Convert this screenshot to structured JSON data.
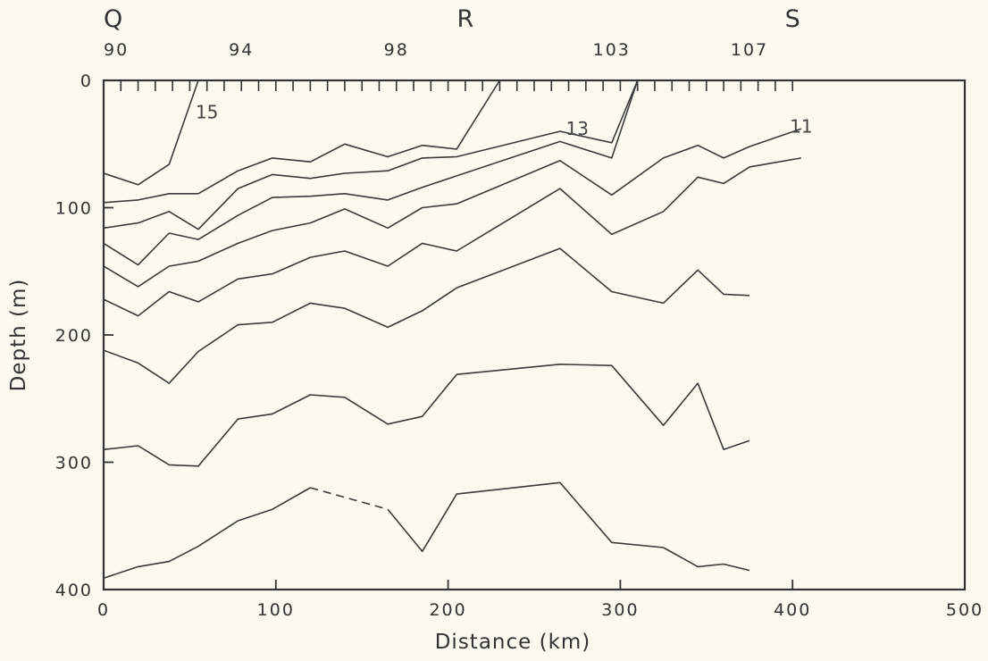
{
  "chart_data": {
    "type": "line",
    "xlabel": "Distance (km)",
    "ylabel": "Depth (m)",
    "xlim": [
      0,
      500
    ],
    "ylim": [
      0,
      400
    ],
    "y_inverted": true,
    "x_ticks": [
      0,
      100,
      200,
      300,
      400,
      500
    ],
    "y_ticks": [
      0,
      100,
      200,
      300,
      400
    ],
    "section_labels": [
      {
        "label": "Q",
        "x": 0
      },
      {
        "label": "R",
        "x": 210
      },
      {
        "label": "S",
        "x": 400
      }
    ],
    "station_labels": [
      {
        "label": "90",
        "x": 0
      },
      {
        "label": "94",
        "x": 80
      },
      {
        "label": "98",
        "x": 170
      },
      {
        "label": "103",
        "x": 295
      },
      {
        "label": "107",
        "x": 375
      }
    ],
    "contour_labels": [
      {
        "label": "15",
        "x": 60,
        "y": 25
      },
      {
        "label": "13",
        "x": 275,
        "y": 38
      },
      {
        "label": "11",
        "x": 405,
        "y": 36
      }
    ],
    "series": [
      {
        "points": [
          [
            0,
            73
          ],
          [
            20,
            82
          ],
          [
            38,
            66
          ],
          [
            55,
            0
          ]
        ]
      },
      {
        "points": [
          [
            0,
            96
          ],
          [
            20,
            94
          ],
          [
            38,
            89
          ],
          [
            55,
            89
          ],
          [
            78,
            71
          ],
          [
            98,
            61
          ],
          [
            120,
            64
          ],
          [
            140,
            50
          ],
          [
            165,
            60
          ],
          [
            185,
            51
          ],
          [
            205,
            54
          ],
          [
            230,
            0
          ]
        ]
      },
      {
        "points": [
          [
            0,
            116
          ],
          [
            20,
            112
          ],
          [
            38,
            103
          ],
          [
            55,
            117
          ],
          [
            78,
            85
          ],
          [
            98,
            74
          ],
          [
            120,
            77
          ],
          [
            140,
            73
          ],
          [
            165,
            71
          ],
          [
            185,
            61
          ],
          [
            205,
            60
          ],
          [
            265,
            40
          ],
          [
            295,
            49
          ],
          [
            310,
            0
          ]
        ]
      },
      {
        "points": [
          [
            0,
            128
          ],
          [
            20,
            145
          ],
          [
            38,
            120
          ],
          [
            55,
            125
          ],
          [
            78,
            106
          ],
          [
            98,
            92
          ],
          [
            120,
            91
          ],
          [
            140,
            89
          ],
          [
            165,
            94
          ],
          [
            185,
            84
          ],
          [
            265,
            48
          ],
          [
            295,
            61
          ],
          [
            310,
            0
          ]
        ]
      },
      {
        "points": [
          [
            0,
            146
          ],
          [
            20,
            162
          ],
          [
            38,
            146
          ],
          [
            55,
            142
          ],
          [
            78,
            128
          ],
          [
            98,
            118
          ],
          [
            120,
            112
          ],
          [
            140,
            101
          ],
          [
            165,
            116
          ],
          [
            185,
            100
          ],
          [
            205,
            97
          ],
          [
            265,
            63
          ],
          [
            295,
            90
          ],
          [
            325,
            61
          ],
          [
            345,
            51
          ],
          [
            360,
            61
          ],
          [
            375,
            52
          ],
          [
            405,
            38
          ]
        ]
      },
      {
        "points": [
          [
            0,
            172
          ],
          [
            20,
            185
          ],
          [
            38,
            166
          ],
          [
            55,
            174
          ],
          [
            78,
            156
          ],
          [
            98,
            152
          ],
          [
            120,
            139
          ],
          [
            140,
            134
          ],
          [
            165,
            146
          ],
          [
            185,
            128
          ],
          [
            205,
            134
          ],
          [
            265,
            85
          ],
          [
            295,
            121
          ],
          [
            325,
            103
          ],
          [
            345,
            76
          ],
          [
            360,
            81
          ],
          [
            375,
            68
          ],
          [
            405,
            61
          ]
        ]
      },
      {
        "points": [
          [
            0,
            212
          ],
          [
            20,
            222
          ],
          [
            38,
            238
          ],
          [
            55,
            213
          ],
          [
            78,
            192
          ],
          [
            98,
            190
          ],
          [
            120,
            175
          ],
          [
            140,
            179
          ],
          [
            165,
            194
          ],
          [
            185,
            181
          ],
          [
            205,
            163
          ],
          [
            265,
            132
          ],
          [
            295,
            166
          ],
          [
            325,
            175
          ],
          [
            345,
            149
          ],
          [
            360,
            168
          ],
          [
            375,
            169
          ]
        ]
      },
      {
        "points": [
          [
            0,
            290
          ],
          [
            20,
            287
          ],
          [
            38,
            302
          ],
          [
            55,
            303
          ],
          [
            78,
            266
          ],
          [
            98,
            262
          ],
          [
            120,
            247
          ],
          [
            140,
            249
          ],
          [
            165,
            270
          ],
          [
            185,
            264
          ],
          [
            205,
            231
          ],
          [
            265,
            223
          ],
          [
            295,
            224
          ],
          [
            325,
            271
          ],
          [
            345,
            238
          ],
          [
            360,
            290
          ],
          [
            375,
            283
          ]
        ]
      },
      {
        "points": [
          [
            0,
            391
          ],
          [
            20,
            382
          ],
          [
            38,
            378
          ],
          [
            55,
            366
          ],
          [
            78,
            346
          ],
          [
            98,
            337
          ],
          [
            120,
            320
          ]
        ]
      },
      {
        "points": [
          [
            120,
            320
          ],
          [
            165,
            337
          ]
        ],
        "dashed": true
      },
      {
        "points": [
          [
            165,
            337
          ],
          [
            185,
            370
          ],
          [
            205,
            325
          ],
          [
            265,
            316
          ],
          [
            295,
            363
          ],
          [
            325,
            367
          ],
          [
            345,
            382
          ],
          [
            360,
            380
          ],
          [
            375,
            385
          ]
        ]
      }
    ]
  }
}
